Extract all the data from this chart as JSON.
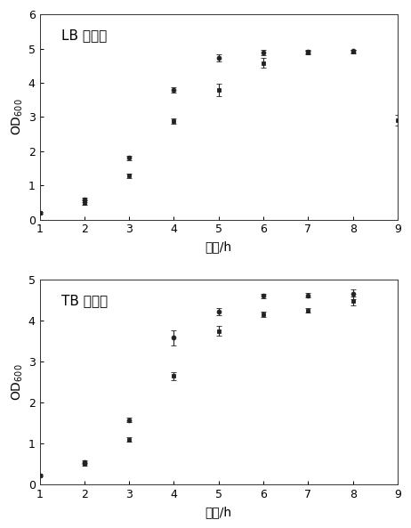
{
  "lb_x1": [
    1,
    2,
    3,
    4,
    5,
    6,
    7,
    8
  ],
  "lb_y1": [
    0.2,
    0.6,
    1.8,
    3.8,
    4.72,
    4.88,
    4.92,
    4.93
  ],
  "lb_e1": [
    0.02,
    0.05,
    0.06,
    0.08,
    0.1,
    0.07,
    0.05,
    0.04
  ],
  "lb_x2": [
    1,
    2,
    3,
    4,
    5,
    6,
    7,
    8,
    9
  ],
  "lb_y2": [
    0.2,
    0.48,
    1.28,
    2.88,
    3.8,
    4.58,
    4.88,
    4.92,
    2.9
  ],
  "lb_e2": [
    0.02,
    0.04,
    0.06,
    0.08,
    0.18,
    0.14,
    0.06,
    0.05,
    0.15
  ],
  "tb_x1": [
    1,
    2,
    3,
    4,
    5,
    6,
    7,
    8
  ],
  "tb_y1": [
    0.22,
    0.55,
    1.58,
    3.58,
    4.22,
    4.6,
    4.62,
    4.65
  ],
  "tb_e1": [
    0.02,
    0.04,
    0.06,
    0.18,
    0.08,
    0.06,
    0.05,
    0.12
  ],
  "tb_x2": [
    1,
    2,
    3,
    4,
    5,
    6,
    7,
    8
  ],
  "tb_y2": [
    0.22,
    0.5,
    1.1,
    2.65,
    3.75,
    4.15,
    4.25,
    4.48
  ],
  "tb_e2": [
    0.02,
    0.03,
    0.05,
    0.1,
    0.12,
    0.06,
    0.05,
    0.1
  ],
  "lb_title": "LB 培养基",
  "tb_title": "TB 培养基",
  "xlabel": "时间/h",
  "lb_ylim": [
    0,
    6
  ],
  "tb_ylim": [
    0,
    5
  ],
  "xlim": [
    1,
    9
  ],
  "color_dark": "#222222",
  "linecolor": "#1a1a1a",
  "title_fontsize": 11,
  "axis_fontsize": 10,
  "tick_fontsize": 9
}
